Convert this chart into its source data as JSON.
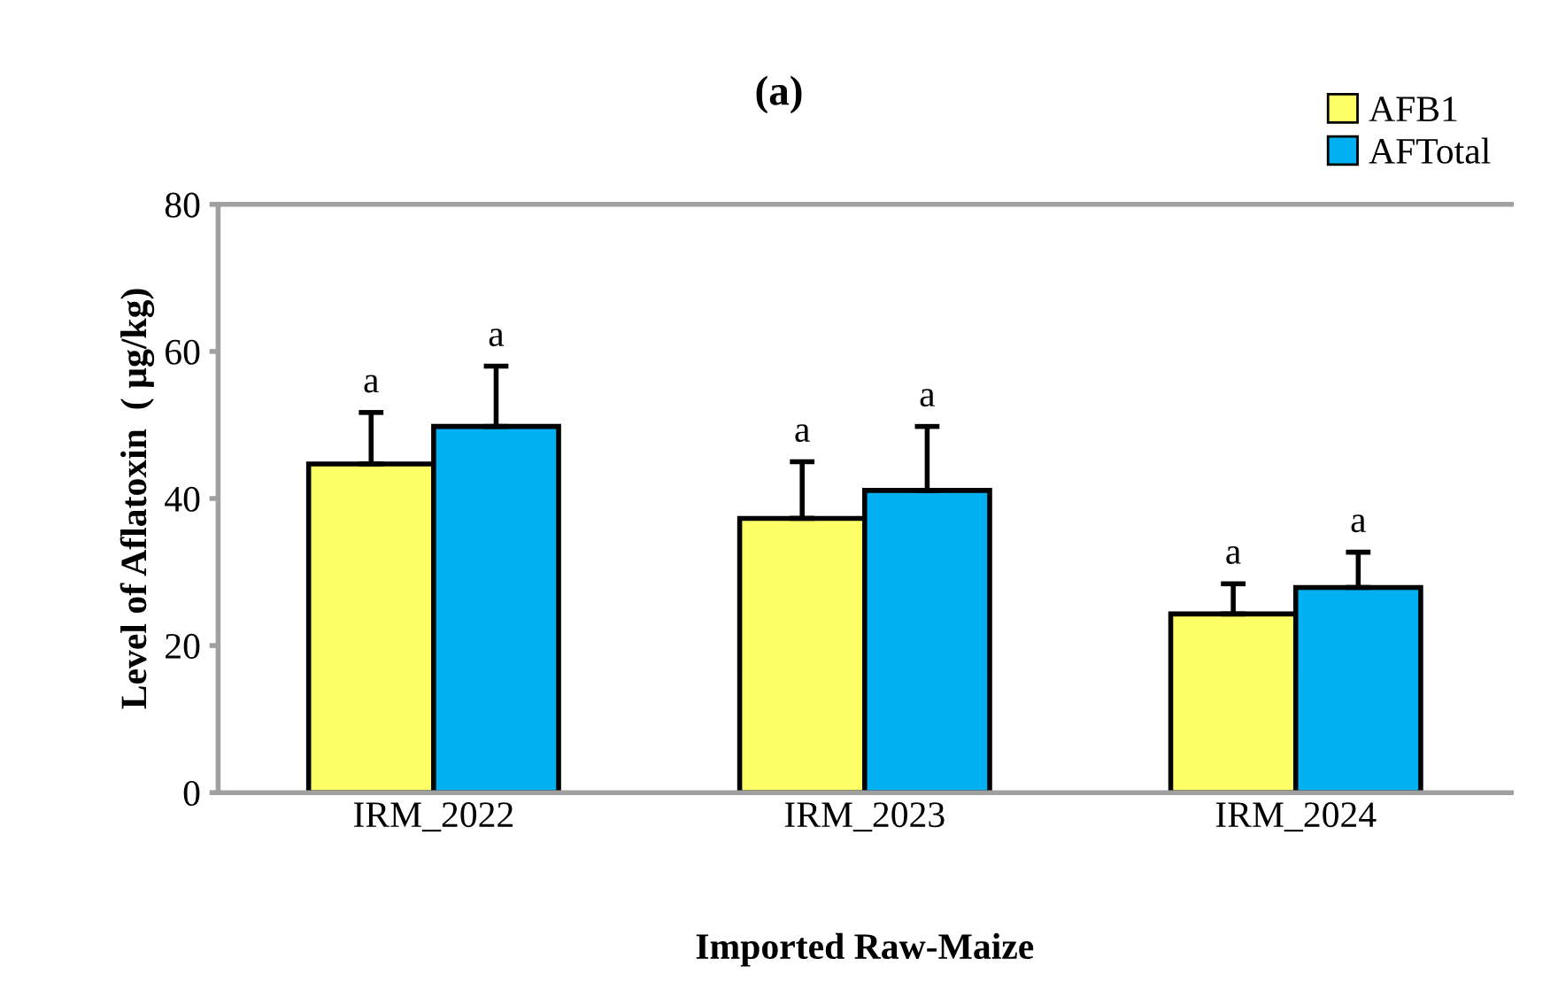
{
  "chart_data": {
    "type": "bar",
    "title": "(a)",
    "xlabel": "Imported Raw-Maize",
    "ylabel": "Level of Aflatoxin  ( µg/kg)",
    "categories": [
      "IRM_2022",
      "IRM_2023",
      "IRM_2024"
    ],
    "series": [
      {
        "name": "AFB1",
        "color": "#ffff66",
        "values": [
          44.7,
          37.3,
          24.3
        ],
        "errors": [
          [
            44.7,
            51.7
          ],
          [
            37.3,
            45
          ],
          [
            24.3,
            28.4
          ]
        ]
      },
      {
        "name": "AFTotal",
        "color": "#00b0f0",
        "values": [
          49.8,
          41.1,
          27.9
        ],
        "errors": [
          [
            49.8,
            58
          ],
          [
            41.1,
            49.8
          ],
          [
            27.9,
            32.7
          ]
        ]
      }
    ],
    "annotations": [
      "a",
      "a",
      "a",
      "a",
      "a",
      "a"
    ],
    "ylim": [
      0,
      80
    ],
    "yticks": [
      0,
      20,
      40,
      60,
      80
    ],
    "grid": false,
    "legend": "top right"
  }
}
